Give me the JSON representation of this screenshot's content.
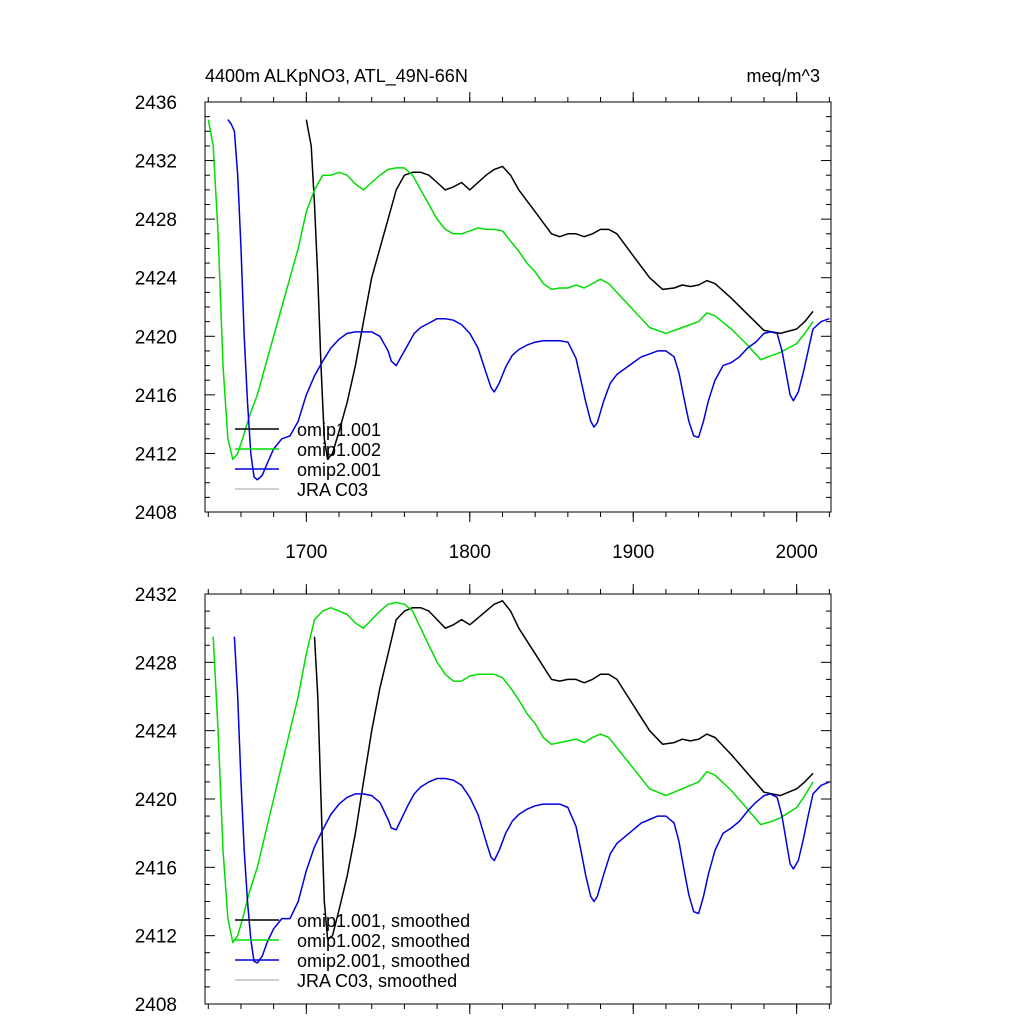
{
  "header": {
    "title": "4400m ALKpNO3, ATL_49N-66N",
    "units": "meq/m^3"
  },
  "colors": {
    "omip1_001": "#000000",
    "omip1_002": "#00dd00",
    "omip2_001": "#0000dd",
    "jra_c03": "#c0c0c8"
  },
  "chart_data": [
    {
      "type": "line",
      "title": "4400m ALKpNO3, ATL_49N-66N",
      "xlabel": "",
      "ylabel": "",
      "xlim": [
        1638,
        2021
      ],
      "ylim": [
        2408,
        2436
      ],
      "yticks": [
        2408,
        2412,
        2416,
        2420,
        2424,
        2428,
        2432,
        2436
      ],
      "yticklabels": [
        "2408",
        "2412",
        "2416",
        "2420",
        "2424",
        "2428",
        "2432",
        "2436"
      ],
      "xticks": [
        1700,
        1800,
        1900,
        2000
      ],
      "xticklabels": [
        "1700",
        "1800",
        "1900",
        "2000"
      ],
      "legend": "bottom-left",
      "series": [
        {
          "name": "omip1.001",
          "color": "#000000",
          "x": [
            1700,
            1703,
            1705,
            1707,
            1709,
            1711,
            1713,
            1716,
            1720,
            1725,
            1730,
            1735,
            1740,
            1745,
            1750,
            1755,
            1760,
            1765,
            1770,
            1775,
            1780,
            1785,
            1790,
            1795,
            1800,
            1805,
            1810,
            1815,
            1820,
            1825,
            1830,
            1840,
            1850,
            1855,
            1860,
            1865,
            1870,
            1875,
            1880,
            1885,
            1890,
            1900,
            1910,
            1918,
            1925,
            1930,
            1935,
            1940,
            1945,
            1950,
            1960,
            1970,
            1980,
            1990,
            2000,
            2005,
            2010
          ],
          "y": [
            2434.8,
            2433,
            2429,
            2424,
            2418,
            2413,
            2411.6,
            2412,
            2413.5,
            2415.5,
            2418,
            2421,
            2424,
            2426,
            2428,
            2430,
            2431,
            2431.2,
            2431.2,
            2431,
            2430.5,
            2430,
            2430.2,
            2430.5,
            2430,
            2430.5,
            2431,
            2431.4,
            2431.6,
            2431,
            2430,
            2428.5,
            2427,
            2426.8,
            2427,
            2427,
            2426.8,
            2427,
            2427.3,
            2427.3,
            2427,
            2425.5,
            2424,
            2423.2,
            2423.3,
            2423.5,
            2423.4,
            2423.5,
            2423.8,
            2423.6,
            2422.6,
            2421.5,
            2420.4,
            2420.2,
            2420.5,
            2421,
            2421.7
          ]
        },
        {
          "name": "omip1.002",
          "color": "#00dd00",
          "x": [
            1640,
            1643,
            1646,
            1649,
            1652,
            1655,
            1658,
            1661,
            1665,
            1670,
            1675,
            1680,
            1685,
            1690,
            1695,
            1700,
            1705,
            1710,
            1715,
            1720,
            1725,
            1730,
            1735,
            1740,
            1745,
            1750,
            1755,
            1760,
            1765,
            1770,
            1775,
            1780,
            1785,
            1790,
            1795,
            1800,
            1805,
            1810,
            1815,
            1820,
            1825,
            1830,
            1835,
            1840,
            1845,
            1850,
            1855,
            1860,
            1865,
            1870,
            1875,
            1880,
            1885,
            1890,
            1900,
            1910,
            1920,
            1930,
            1940,
            1945,
            1950,
            1960,
            1970,
            1978,
            1985,
            1990,
            1995,
            2000,
            2005,
            2010
          ],
          "y": [
            2434.8,
            2433,
            2427,
            2418,
            2413,
            2411.6,
            2412,
            2413,
            2414.5,
            2416,
            2418,
            2420,
            2422,
            2424,
            2426,
            2428.5,
            2430,
            2431,
            2431,
            2431.2,
            2431,
            2430.4,
            2430,
            2430.5,
            2431,
            2431.4,
            2431.5,
            2431.5,
            2431,
            2430,
            2429,
            2428,
            2427.3,
            2427,
            2427,
            2427.2,
            2427.4,
            2427.3,
            2427.3,
            2427.2,
            2426.5,
            2425.8,
            2425,
            2424.4,
            2423.6,
            2423.2,
            2423.3,
            2423.3,
            2423.5,
            2423.3,
            2423.6,
            2423.9,
            2423.6,
            2423,
            2421.8,
            2420.6,
            2420.2,
            2420.6,
            2421,
            2421.6,
            2421.4,
            2420.5,
            2419.4,
            2418.4,
            2418.7,
            2418.9,
            2419.2,
            2419.5,
            2420.2,
            2421
          ]
        },
        {
          "name": "omip2.001",
          "color": "#0000dd",
          "x": [
            1652,
            1654,
            1656,
            1658,
            1660,
            1662,
            1664,
            1666,
            1668,
            1670,
            1673,
            1676,
            1680,
            1685,
            1690,
            1695,
            1700,
            1705,
            1710,
            1715,
            1720,
            1725,
            1730,
            1735,
            1740,
            1745,
            1750,
            1752,
            1755,
            1758,
            1762,
            1766,
            1770,
            1775,
            1780,
            1785,
            1790,
            1795,
            1800,
            1805,
            1810,
            1813,
            1815,
            1818,
            1822,
            1826,
            1830,
            1835,
            1840,
            1845,
            1850,
            1855,
            1860,
            1865,
            1868,
            1871,
            1874,
            1876,
            1878,
            1882,
            1886,
            1890,
            1895,
            1900,
            1905,
            1910,
            1915,
            1920,
            1925,
            1928,
            1931,
            1934,
            1937,
            1940,
            1943,
            1946,
            1950,
            1955,
            1960,
            1965,
            1970,
            1975,
            1980,
            1984,
            1988,
            1991,
            1994,
            1996,
            1998,
            2001,
            2004,
            2007,
            2010,
            2015,
            2020
          ],
          "y": [
            2434.8,
            2434.5,
            2434,
            2431,
            2426,
            2420,
            2415.5,
            2412,
            2410.4,
            2410.2,
            2410.5,
            2411.3,
            2412.3,
            2413,
            2413.2,
            2414.2,
            2416,
            2417.3,
            2418.3,
            2419.2,
            2419.8,
            2420.2,
            2420.3,
            2420.3,
            2420.3,
            2420,
            2419,
            2418.3,
            2418,
            2418.6,
            2419.4,
            2420.2,
            2420.6,
            2420.9,
            2421.2,
            2421.2,
            2421.1,
            2420.8,
            2420.2,
            2419.2,
            2417.5,
            2416.5,
            2416.2,
            2416.8,
            2417.9,
            2418.7,
            2419.1,
            2419.4,
            2419.6,
            2419.7,
            2419.7,
            2419.7,
            2419.6,
            2418.5,
            2417,
            2415.5,
            2414.2,
            2413.8,
            2414.1,
            2415.6,
            2416.8,
            2417.4,
            2417.8,
            2418.2,
            2418.6,
            2418.8,
            2419,
            2419,
            2418.6,
            2417.5,
            2415.8,
            2414.2,
            2413.2,
            2413.1,
            2414.2,
            2415.6,
            2417,
            2418,
            2418.2,
            2418.6,
            2419.2,
            2419.6,
            2420.2,
            2420.3,
            2420.2,
            2419,
            2417.2,
            2416,
            2415.6,
            2416.2,
            2417.5,
            2419,
            2420.5,
            2421,
            2421.2
          ]
        },
        {
          "name": "JRA C03",
          "color": "#c0c0c8",
          "x": [],
          "y": []
        }
      ]
    },
    {
      "type": "line",
      "title": "",
      "xlabel": "",
      "ylabel": "",
      "xlim": [
        1638,
        2021
      ],
      "ylim": [
        2408,
        2432
      ],
      "yticks": [
        2408,
        2412,
        2416,
        2420,
        2424,
        2428,
        2432
      ],
      "yticklabels": [
        "2408",
        "2412",
        "2416",
        "2420",
        "2424",
        "2428",
        "2432"
      ],
      "xticks": [
        1700,
        1800,
        1900,
        2000
      ],
      "xticklabels": [],
      "legend": "bottom-left",
      "series": [
        {
          "name": "omip1.001, smoothed",
          "color": "#000000",
          "x": [
            1705,
            1707,
            1709,
            1711,
            1713,
            1716,
            1720,
            1725,
            1730,
            1735,
            1740,
            1745,
            1750,
            1755,
            1760,
            1765,
            1770,
            1775,
            1780,
            1785,
            1790,
            1795,
            1800,
            1805,
            1810,
            1815,
            1820,
            1825,
            1830,
            1840,
            1850,
            1855,
            1860,
            1865,
            1870,
            1875,
            1880,
            1885,
            1890,
            1900,
            1910,
            1918,
            1925,
            1930,
            1935,
            1940,
            1945,
            1950,
            1960,
            1970,
            1980,
            1990,
            2000,
            2005,
            2010
          ],
          "y": [
            2429.5,
            2426,
            2420,
            2414,
            2411.8,
            2412,
            2413.5,
            2415.5,
            2418,
            2421,
            2424,
            2426.5,
            2428.5,
            2430.5,
            2431,
            2431.2,
            2431.2,
            2431,
            2430.5,
            2430,
            2430.2,
            2430.5,
            2430.2,
            2430.6,
            2431,
            2431.4,
            2431.6,
            2431,
            2430,
            2428.5,
            2427,
            2426.9,
            2427,
            2427,
            2426.8,
            2427,
            2427.3,
            2427.3,
            2427,
            2425.5,
            2424,
            2423.2,
            2423.3,
            2423.5,
            2423.4,
            2423.5,
            2423.8,
            2423.6,
            2422.6,
            2421.5,
            2420.4,
            2420.2,
            2420.6,
            2421,
            2421.5
          ]
        },
        {
          "name": "omip1.002, smoothed",
          "color": "#00dd00",
          "x": [
            1643,
            1646,
            1649,
            1652,
            1655,
            1658,
            1661,
            1665,
            1670,
            1675,
            1680,
            1685,
            1690,
            1695,
            1700,
            1705,
            1710,
            1715,
            1720,
            1725,
            1730,
            1735,
            1740,
            1745,
            1750,
            1755,
            1760,
            1765,
            1770,
            1775,
            1780,
            1785,
            1790,
            1795,
            1800,
            1805,
            1810,
            1815,
            1820,
            1825,
            1830,
            1835,
            1840,
            1845,
            1850,
            1855,
            1860,
            1865,
            1870,
            1875,
            1880,
            1885,
            1890,
            1900,
            1910,
            1920,
            1930,
            1940,
            1945,
            1950,
            1960,
            1970,
            1978,
            1985,
            1990,
            1995,
            2000,
            2005,
            2010
          ],
          "y": [
            2429.5,
            2424,
            2417,
            2413,
            2411.6,
            2412,
            2413,
            2414.5,
            2416,
            2418,
            2420,
            2422,
            2424,
            2426,
            2428.5,
            2430.5,
            2431,
            2431.2,
            2431,
            2430.8,
            2430.3,
            2430,
            2430.5,
            2431,
            2431.4,
            2431.5,
            2431.4,
            2431,
            2430,
            2429,
            2428,
            2427.3,
            2426.9,
            2426.9,
            2427.2,
            2427.3,
            2427.3,
            2427.3,
            2427.1,
            2426.5,
            2425.8,
            2425,
            2424.4,
            2423.6,
            2423.2,
            2423.3,
            2423.4,
            2423.5,
            2423.3,
            2423.6,
            2423.8,
            2423.6,
            2423,
            2421.8,
            2420.6,
            2420.2,
            2420.6,
            2421,
            2421.6,
            2421.4,
            2420.5,
            2419.4,
            2418.5,
            2418.7,
            2418.9,
            2419.2,
            2419.5,
            2420.2,
            2421
          ]
        },
        {
          "name": "omip2.001, smoothed",
          "color": "#0000dd",
          "x": [
            1656,
            1658,
            1660,
            1662,
            1664,
            1666,
            1668,
            1670,
            1673,
            1676,
            1680,
            1685,
            1690,
            1695,
            1700,
            1705,
            1710,
            1715,
            1720,
            1725,
            1730,
            1735,
            1740,
            1745,
            1750,
            1752,
            1755,
            1758,
            1762,
            1766,
            1770,
            1775,
            1780,
            1785,
            1790,
            1795,
            1800,
            1805,
            1810,
            1813,
            1815,
            1818,
            1822,
            1826,
            1830,
            1835,
            1840,
            1845,
            1850,
            1855,
            1860,
            1865,
            1868,
            1871,
            1874,
            1876,
            1878,
            1882,
            1886,
            1890,
            1895,
            1900,
            1905,
            1910,
            1915,
            1920,
            1925,
            1928,
            1931,
            1934,
            1937,
            1940,
            1943,
            1946,
            1950,
            1955,
            1960,
            1965,
            1970,
            1975,
            1980,
            1984,
            1988,
            1991,
            1994,
            1996,
            1998,
            2001,
            2004,
            2007,
            2010,
            2015,
            2020
          ],
          "y": [
            2429.5,
            2426,
            2421,
            2417,
            2414,
            2411.8,
            2410.5,
            2410.4,
            2410.8,
            2411.6,
            2412.4,
            2413,
            2413,
            2414,
            2415.8,
            2417.2,
            2418.2,
            2419.1,
            2419.7,
            2420.1,
            2420.3,
            2420.3,
            2420.2,
            2419.8,
            2418.8,
            2418.3,
            2418.2,
            2418.8,
            2419.6,
            2420.3,
            2420.7,
            2421,
            2421.2,
            2421.2,
            2421.1,
            2420.8,
            2420.1,
            2419.1,
            2417.5,
            2416.6,
            2416.4,
            2417,
            2418,
            2418.7,
            2419.1,
            2419.4,
            2419.6,
            2419.7,
            2419.7,
            2419.7,
            2419.5,
            2418.4,
            2417,
            2415.5,
            2414.3,
            2414,
            2414.3,
            2415.6,
            2416.8,
            2417.4,
            2417.8,
            2418.2,
            2418.6,
            2418.8,
            2419,
            2419,
            2418.6,
            2417.5,
            2415.9,
            2414.4,
            2413.4,
            2413.3,
            2414.3,
            2415.6,
            2417,
            2418,
            2418.3,
            2418.7,
            2419.3,
            2419.8,
            2420.2,
            2420.3,
            2420.1,
            2419,
            2417.3,
            2416.2,
            2415.9,
            2416.4,
            2417.6,
            2419,
            2420.3,
            2420.8,
            2421
          ]
        },
        {
          "name": "JRA C03, smoothed",
          "color": "#c0c0c8",
          "x": [],
          "y": []
        }
      ]
    }
  ]
}
